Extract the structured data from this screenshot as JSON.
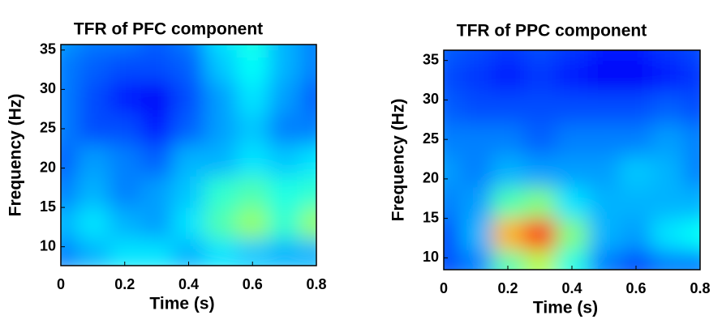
{
  "chart_data": [
    {
      "type": "heatmap",
      "title": "TFR of PFC component",
      "xlabel": "Time (s)",
      "ylabel": "Frequency (Hz)",
      "colormap": "jet",
      "x": [
        0,
        0.1,
        0.2,
        0.3,
        0.4,
        0.5,
        0.6,
        0.7,
        0.8
      ],
      "y": [
        9,
        13,
        17,
        21,
        25,
        29,
        33,
        37
      ],
      "z": [
        [
          0.25,
          0.3,
          0.35,
          0.35,
          0.3,
          0.35,
          0.32,
          0.3,
          0.3
        ],
        [
          0.3,
          0.35,
          0.3,
          0.28,
          0.35,
          0.45,
          0.52,
          0.42,
          0.52
        ],
        [
          0.25,
          0.3,
          0.25,
          0.28,
          0.32,
          0.42,
          0.45,
          0.4,
          0.42
        ],
        [
          0.22,
          0.28,
          0.25,
          0.22,
          0.3,
          0.3,
          0.35,
          0.32,
          0.35
        ],
        [
          0.25,
          0.2,
          0.2,
          0.15,
          0.22,
          0.28,
          0.32,
          0.25,
          0.25
        ],
        [
          0.25,
          0.2,
          0.15,
          0.12,
          0.2,
          0.28,
          0.35,
          0.28,
          0.22
        ],
        [
          0.25,
          0.22,
          0.2,
          0.2,
          0.22,
          0.32,
          0.38,
          0.3,
          0.25
        ],
        [
          0.28,
          0.25,
          0.25,
          0.22,
          0.25,
          0.35,
          0.4,
          0.3,
          0.25
        ]
      ],
      "xlim": [
        0,
        0.8
      ],
      "ylim": [
        7.6,
        35.7
      ],
      "xticks": [
        0,
        0.2,
        0.4,
        0.6,
        0.8
      ],
      "yticks": [
        10,
        15,
        20,
        25,
        30,
        35
      ]
    },
    {
      "type": "heatmap",
      "title": "TFR of PPC component",
      "xlabel": "Time (s)",
      "ylabel": "Frequency (Hz)",
      "colormap": "jet",
      "x": [
        0,
        0.1,
        0.2,
        0.3,
        0.4,
        0.5,
        0.6,
        0.7,
        0.8
      ],
      "y": [
        9,
        13,
        17,
        21,
        25,
        29,
        33,
        37
      ],
      "z": [
        [
          0.2,
          0.25,
          0.45,
          0.55,
          0.4,
          0.25,
          0.2,
          0.25,
          0.25
        ],
        [
          0.2,
          0.3,
          0.7,
          0.85,
          0.5,
          0.3,
          0.28,
          0.35,
          0.38
        ],
        [
          0.25,
          0.28,
          0.45,
          0.5,
          0.35,
          0.3,
          0.3,
          0.3,
          0.3
        ],
        [
          0.28,
          0.25,
          0.3,
          0.28,
          0.28,
          0.28,
          0.32,
          0.3,
          0.25
        ],
        [
          0.25,
          0.25,
          0.25,
          0.22,
          0.25,
          0.25,
          0.25,
          0.28,
          0.25
        ],
        [
          0.22,
          0.2,
          0.2,
          0.2,
          0.2,
          0.2,
          0.2,
          0.22,
          0.2
        ],
        [
          0.2,
          0.18,
          0.15,
          0.18,
          0.15,
          0.12,
          0.12,
          0.15,
          0.18
        ],
        [
          0.22,
          0.2,
          0.18,
          0.2,
          0.18,
          0.15,
          0.15,
          0.18,
          0.2
        ]
      ],
      "xlim": [
        0,
        0.8
      ],
      "ylim": [
        8.5,
        36.3
      ],
      "xticks": [
        0,
        0.2,
        0.4,
        0.6,
        0.8
      ],
      "yticks": [
        10,
        15,
        20,
        25,
        30,
        35
      ]
    }
  ]
}
